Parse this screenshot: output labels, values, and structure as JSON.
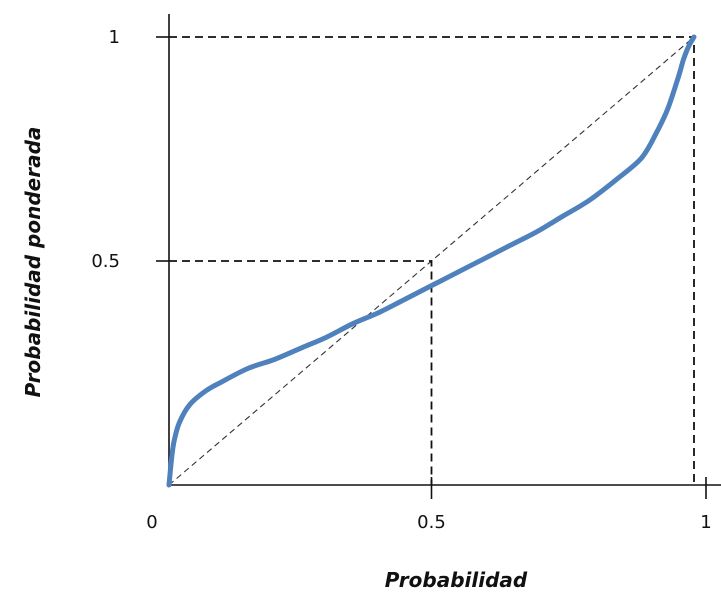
{
  "chart_data": {
    "type": "line",
    "xlabel": "Probabilidad",
    "ylabel": "Probabilidad ponderada",
    "xlim": [
      0,
      1
    ],
    "ylim": [
      0,
      1
    ],
    "x_ticks": [
      {
        "value": 0,
        "label": "0"
      },
      {
        "value": 0.5,
        "label": "0.5"
      },
      {
        "value": 1,
        "label": "1"
      }
    ],
    "y_ticks": [
      {
        "value": 0.5,
        "label": "0.5"
      },
      {
        "value": 1,
        "label": "1"
      }
    ],
    "grid": false,
    "reference_line": {
      "style": "dashed",
      "points": [
        [
          0,
          0
        ],
        [
          1,
          1
        ]
      ]
    },
    "guide_lines": [
      {
        "style": "dashed",
        "points": [
          [
            0,
            0.5
          ],
          [
            0.5,
            0.5
          ],
          [
            0.5,
            0
          ]
        ]
      },
      {
        "style": "dashed",
        "points": [
          [
            0,
            1
          ],
          [
            1,
            1
          ],
          [
            1,
            0
          ]
        ]
      }
    ],
    "series": [
      {
        "color": "#4f81bd",
        "points": [
          [
            0,
            0
          ],
          [
            0.005,
            0.06
          ],
          [
            0.01,
            0.1
          ],
          [
            0.02,
            0.14
          ],
          [
            0.04,
            0.18
          ],
          [
            0.07,
            0.21
          ],
          [
            0.1,
            0.23
          ],
          [
            0.15,
            0.26
          ],
          [
            0.2,
            0.28
          ],
          [
            0.25,
            0.305
          ],
          [
            0.3,
            0.33
          ],
          [
            0.35,
            0.36
          ],
          [
            0.4,
            0.385
          ],
          [
            0.45,
            0.415
          ],
          [
            0.5,
            0.445
          ],
          [
            0.55,
            0.475
          ],
          [
            0.6,
            0.505
          ],
          [
            0.65,
            0.535
          ],
          [
            0.7,
            0.565
          ],
          [
            0.75,
            0.6
          ],
          [
            0.8,
            0.635
          ],
          [
            0.85,
            0.68
          ],
          [
            0.9,
            0.73
          ],
          [
            0.93,
            0.79
          ],
          [
            0.95,
            0.84
          ],
          [
            0.97,
            0.91
          ],
          [
            0.98,
            0.95
          ],
          [
            0.99,
            0.98
          ],
          [
            1,
            1
          ]
        ]
      }
    ]
  }
}
